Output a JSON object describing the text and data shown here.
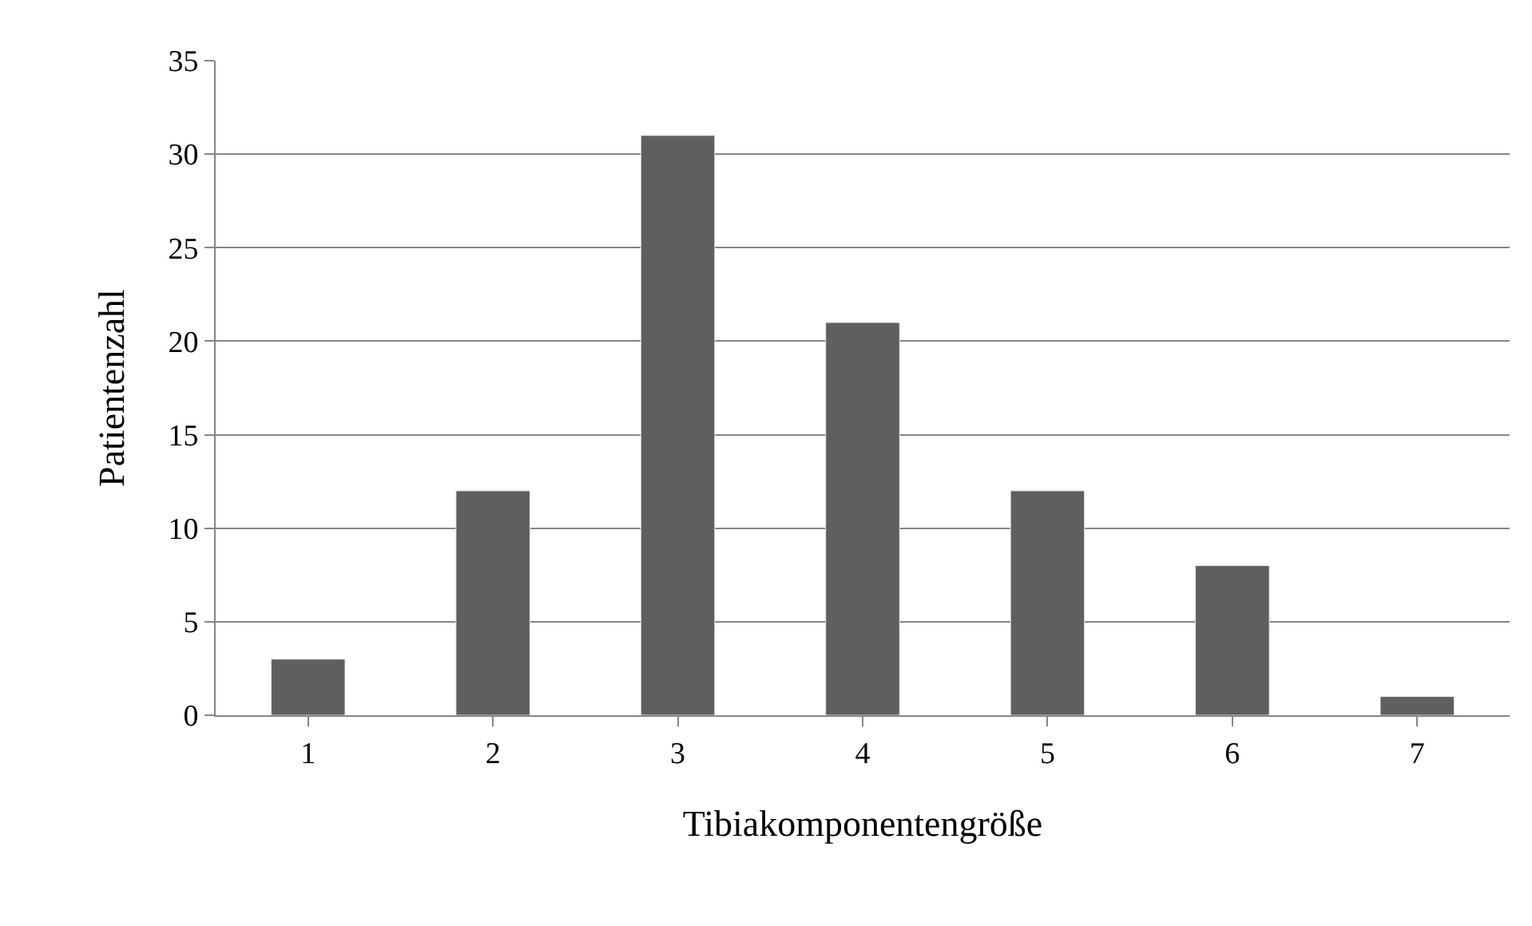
{
  "chart_data": {
    "type": "bar",
    "xlabel": "Tibiakomponentengröße",
    "ylabel": "Patientenzahl",
    "categories": [
      "1",
      "2",
      "3",
      "4",
      "5",
      "6",
      "7"
    ],
    "values": [
      3,
      12,
      31,
      21,
      12,
      8,
      1
    ],
    "color": "#5f5f5f",
    "ylim": [
      0,
      35
    ],
    "yticks": [
      0,
      5,
      10,
      15,
      20,
      25,
      30,
      35
    ],
    "grid": "y",
    "legend": false
  }
}
